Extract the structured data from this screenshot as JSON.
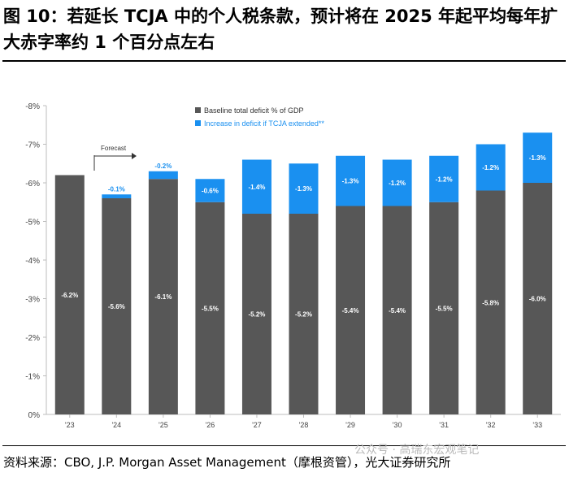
{
  "title": "图 10：若延长 TCJA 中的个人税条款，预计将在 2025 年起平均每年扩大赤字率约 1 个百分点左右",
  "source": "资料来源：CBO, J.P. Morgan Asset Management（摩根资管），光大证券研究所",
  "watermark": "公众号 · 高瑞东宏观笔记",
  "colors": {
    "baseline": "#575757",
    "increase": "#1a90f0",
    "baseline_label": "#ffffff",
    "increase_label": "#ffffff"
  },
  "chart_data": {
    "type": "bar",
    "stacked": true,
    "categories": [
      "'23",
      "'24",
      "'25",
      "'26",
      "'27",
      "'28",
      "'29",
      "'30",
      "'31",
      "'32",
      "'33"
    ],
    "series": [
      {
        "name": "Baseline total deficit % of GDP",
        "values": [
          6.2,
          5.6,
          6.1,
          5.5,
          5.2,
          5.2,
          5.4,
          5.4,
          5.5,
          5.8,
          6.0
        ],
        "labels": [
          "-6.2%",
          "-5.6%",
          "-6.1%",
          "-5.5%",
          "-5.2%",
          "-5.2%",
          "-5.4%",
          "-5.4%",
          "-5.5%",
          "-5.8%",
          "-6.0%"
        ]
      },
      {
        "name": "Increase in deficit if TCJA extended**",
        "values": [
          0,
          0.1,
          0.2,
          0.6,
          1.4,
          1.3,
          1.3,
          1.2,
          1.2,
          1.2,
          1.3
        ],
        "labels": [
          "",
          "-0.1%",
          "-0.2%",
          "-0.6%",
          "-1.4%",
          "-1.3%",
          "-1.3%",
          "-1.2%",
          "-1.2%",
          "-1.2%",
          "-1.3%"
        ]
      }
    ],
    "y_ticks": [
      0,
      1,
      2,
      3,
      4,
      5,
      6,
      7,
      8
    ],
    "y_tick_labels": [
      "0%",
      "-1%",
      "-2%",
      "-3%",
      "-4%",
      "-5%",
      "-6%",
      "-7%",
      "-8%"
    ],
    "ylim": [
      0,
      8
    ],
    "annotation": "Forecast",
    "legend_position": "top-center"
  }
}
